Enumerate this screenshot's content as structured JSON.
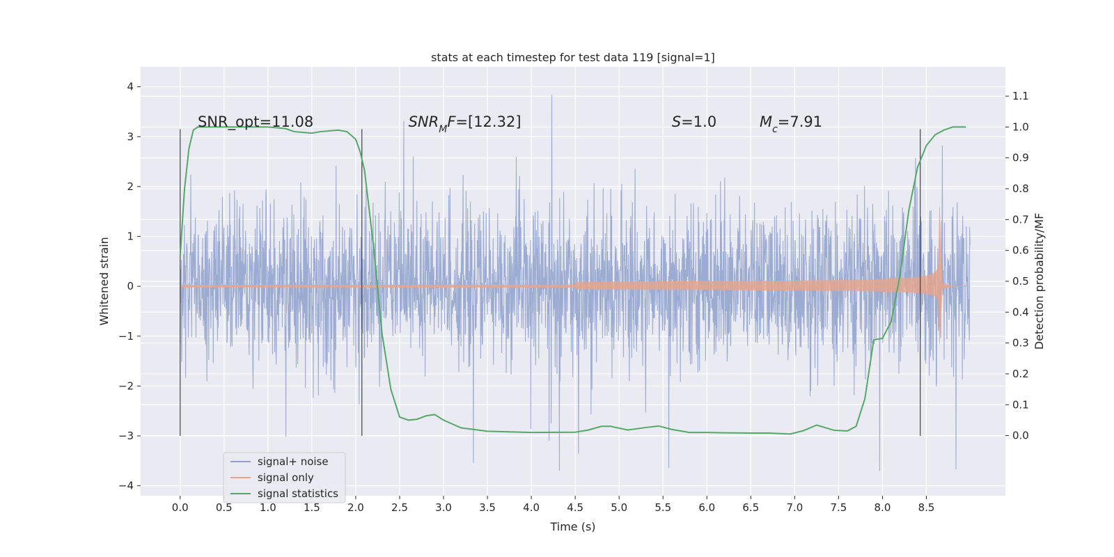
{
  "chart_data": {
    "type": "line",
    "title": "stats at each timestep for test data 119 [signal=1]",
    "xlabel": "Time (s)",
    "ylabel": "Whitened strain",
    "y2label": "Detection probability/MF",
    "xlim": [
      -0.45,
      9.4
    ],
    "ylim": [
      -4.2,
      4.4
    ],
    "y2lim": [
      -0.195,
      1.195
    ],
    "x_ticks": [
      0.0,
      0.5,
      1.0,
      1.5,
      2.0,
      2.5,
      3.0,
      3.5,
      4.0,
      4.5,
      5.0,
      5.5,
      6.0,
      6.5,
      7.0,
      7.5,
      8.0,
      8.5
    ],
    "x_tick_labels": [
      "0.0",
      "0.5",
      "1.0",
      "1.5",
      "2.0",
      "2.5",
      "3.0",
      "3.5",
      "4.0",
      "4.5",
      "5.0",
      "5.5",
      "6.0",
      "6.5",
      "7.0",
      "7.5",
      "8.0",
      "8.5"
    ],
    "y_ticks": [
      4,
      3,
      2,
      1,
      0,
      -1,
      -2,
      -3,
      -4
    ],
    "y_tick_labels": [
      "4",
      "3",
      "2",
      "1",
      "0",
      "−1",
      "−2",
      "−3",
      "−4"
    ],
    "y2_ticks": [
      1.1,
      1.0,
      0.9,
      0.8,
      0.7,
      0.6,
      0.5,
      0.4,
      0.3,
      0.2,
      0.1,
      0.0
    ],
    "y2_tick_labels": [
      "1.1",
      "1.0",
      "0.9",
      "0.8",
      "0.7",
      "0.6",
      "0.5",
      "0.4",
      "0.3",
      "0.2",
      "0.1",
      "0.0"
    ],
    "grid": true,
    "legend_position": "lower-left",
    "series": [
      {
        "name": "signal+ noise",
        "color": "#8da0cb",
        "axis": "left",
        "t_start": 0.0,
        "t_end": 9.0,
        "approx_std": 0.75,
        "approx_range": [
          -3.7,
          4.0
        ]
      },
      {
        "name": "signal only",
        "color": "#e8a58c",
        "axis": "left",
        "t_start": 0.0,
        "merger_time": 8.65,
        "peak_amplitude": 1.6
      },
      {
        "name": "signal statistics",
        "color": "#55a868",
        "axis": "right",
        "x": [
          0.0,
          0.05,
          0.1,
          0.15,
          0.2,
          0.3,
          0.5,
          0.8,
          1.0,
          1.2,
          1.3,
          1.5,
          1.6,
          1.8,
          1.9,
          2.0,
          2.05,
          2.1,
          2.2,
          2.3,
          2.4,
          2.5,
          2.6,
          2.7,
          2.8,
          2.9,
          3.0,
          3.2,
          3.5,
          4.0,
          4.5,
          4.65,
          4.8,
          4.9,
          5.1,
          5.3,
          5.45,
          5.6,
          5.8,
          6.0,
          6.2,
          6.5,
          6.7,
          6.95,
          7.1,
          7.25,
          7.45,
          7.6,
          7.7,
          7.8,
          7.9,
          8.0,
          8.1,
          8.2,
          8.3,
          8.4,
          8.5,
          8.6,
          8.7,
          8.8,
          8.9,
          8.95
        ],
        "y": [
          0.58,
          0.8,
          0.93,
          0.99,
          1.0,
          1.0,
          1.0,
          1.0,
          1.0,
          0.995,
          0.985,
          0.98,
          0.985,
          0.99,
          0.985,
          0.96,
          0.92,
          0.86,
          0.62,
          0.33,
          0.15,
          0.06,
          0.05,
          0.053,
          0.064,
          0.068,
          0.05,
          0.025,
          0.014,
          0.01,
          0.011,
          0.018,
          0.03,
          0.03,
          0.018,
          0.026,
          0.031,
          0.02,
          0.01,
          0.01,
          0.009,
          0.008,
          0.008,
          0.005,
          0.016,
          0.034,
          0.017,
          0.015,
          0.03,
          0.12,
          0.31,
          0.315,
          0.37,
          0.52,
          0.73,
          0.87,
          0.94,
          0.975,
          0.99,
          1.0,
          1.0,
          1.0
        ]
      }
    ],
    "vertical_markers": [
      {
        "x": 0.0,
        "y_from": -3.0,
        "y_to": 3.15
      },
      {
        "x": 2.07,
        "y_from": -3.0,
        "y_to": 3.15
      },
      {
        "x": 8.43,
        "y_from": -3.0,
        "y_to": 3.15
      }
    ],
    "annotations": [
      {
        "parts": [
          {
            "text": "SNR_opt=11.08",
            "italic": false
          }
        ],
        "x": 0.2,
        "y": 3.2
      },
      {
        "parts": [
          {
            "text": "SNR",
            "italic": true
          },
          {
            "text": "M",
            "italic": true,
            "sub": true
          },
          {
            "text": "F",
            "italic": true
          },
          {
            "text": "=[12.32]",
            "italic": false
          }
        ],
        "x": 2.6,
        "y": 3.2
      },
      {
        "parts": [
          {
            "text": "S",
            "italic": true
          },
          {
            "text": "=1.0",
            "italic": false
          }
        ],
        "x": 5.6,
        "y": 3.2
      },
      {
        "parts": [
          {
            "text": "M",
            "italic": true
          },
          {
            "text": "c",
            "italic": true,
            "sub": true
          },
          {
            "text": "=7.91",
            "italic": false
          }
        ],
        "x": 6.6,
        "y": 3.2
      }
    ],
    "legend": [
      "signal+ noise",
      "signal only",
      "signal statistics"
    ]
  }
}
